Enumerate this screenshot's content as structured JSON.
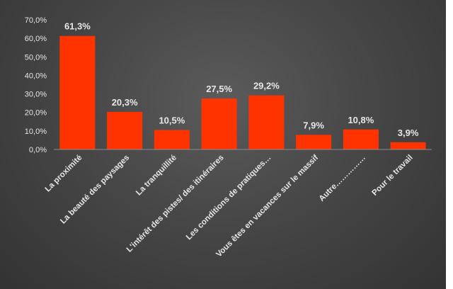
{
  "chart_data": {
    "type": "bar",
    "title": "",
    "xlabel": "",
    "ylabel": "",
    "categories": [
      "La proximité",
      "La beauté des paysages",
      "La tranquillité",
      "L'intérêt des pistes/ des itinéraires",
      "Les conditions de pratiques…",
      "Vous êtes en vacances sur le massif",
      "Autre……………",
      "Pour le travail"
    ],
    "values": [
      61.3,
      20.3,
      10.5,
      27.5,
      29.2,
      7.9,
      10.8,
      3.9
    ],
    "data_labels": [
      "61,3%",
      "20,3%",
      "10,5%",
      "27,5%",
      "29,2%",
      "7,9%",
      "10,8%",
      "3,9%"
    ],
    "yticks": [
      "0,0%",
      "10,0%",
      "20,0%",
      "30,0%",
      "40,0%",
      "50,0%",
      "60,0%",
      "70,0%"
    ],
    "ylim": [
      0,
      70
    ],
    "grid": false,
    "legend": "none",
    "bar_color": "#ff3300",
    "background": "#444444"
  }
}
